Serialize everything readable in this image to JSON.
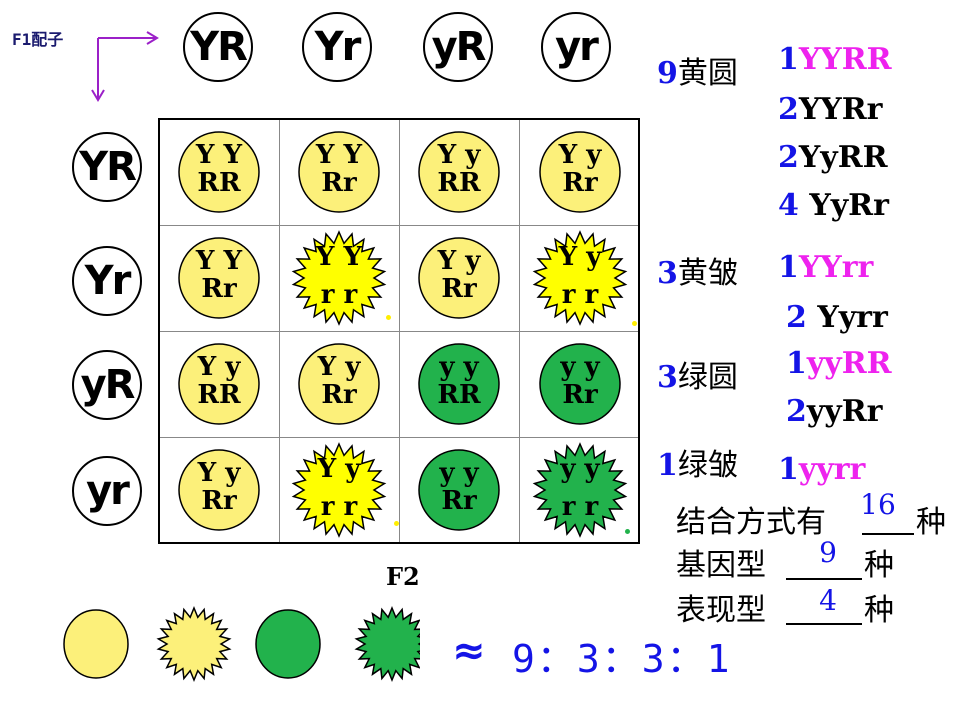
{
  "header": {
    "f1_label": "F1配子"
  },
  "gametes": {
    "top": [
      "YR",
      "Yr",
      "yR",
      "yr"
    ],
    "left": [
      "YR",
      "Yr",
      "yR",
      "yr"
    ]
  },
  "grid": {
    "rows": [
      [
        {
          "g1": "Y Y",
          "g2": "RR",
          "type": "yellow-round"
        },
        {
          "g1": "Y Y",
          "g2": "Rr",
          "type": "yellow-round"
        },
        {
          "g1": "Y y",
          "g2": "RR",
          "type": "yellow-round"
        },
        {
          "g1": "Y y",
          "g2": "Rr",
          "type": "yellow-round"
        }
      ],
      [
        {
          "g1": "Y Y",
          "g2": "Rr",
          "type": "yellow-round"
        },
        {
          "g1": "Y Y",
          "g2": "r r",
          "type": "yellow-wrinkled"
        },
        {
          "g1": "Y y",
          "g2": "Rr",
          "type": "yellow-round"
        },
        {
          "g1": "Y y",
          "g2": "r r",
          "type": "yellow-wrinkled"
        }
      ],
      [
        {
          "g1": "Y y",
          "g2": "RR",
          "type": "yellow-round"
        },
        {
          "g1": "Y y",
          "g2": "Rr",
          "type": "yellow-round"
        },
        {
          "g1": "y y",
          "g2": "RR",
          "type": "green-round"
        },
        {
          "g1": "y y",
          "g2": "Rr",
          "type": "green-round"
        }
      ],
      [
        {
          "g1": "Y y",
          "g2": "Rr",
          "type": "yellow-round"
        },
        {
          "g1": "Y y",
          "g2": "r r",
          "type": "yellow-wrinkled"
        },
        {
          "g1": "y y",
          "g2": "Rr",
          "type": "green-round"
        },
        {
          "g1": "y y",
          "g2": "r r",
          "type": "green-wrinkled"
        }
      ]
    ]
  },
  "f2_label": "F2",
  "phenotypes": [
    {
      "count": "9",
      "name": "黄圆",
      "genotypes": [
        {
          "n": "1",
          "g": "YYRR",
          "hl": true
        },
        {
          "n": "2",
          "g": "YYRr",
          "hl": false
        },
        {
          "n": "2",
          "g": "YyRR",
          "hl": false
        },
        {
          "n": "4 ",
          "g": "YyRr",
          "hl": false
        }
      ]
    },
    {
      "count": "3",
      "name": "黄皱",
      "genotypes": [
        {
          "n": "1",
          "g": "YYrr",
          "hl": true
        },
        {
          "n": "2 ",
          "g": "Yyrr",
          "hl": false
        }
      ]
    },
    {
      "count": "3",
      "name": "绿圆",
      "genotypes": [
        {
          "n": "1",
          "g": "yyRR",
          "hl": true
        },
        {
          "n": "2",
          "g": "yyRr",
          "hl": false
        }
      ]
    },
    {
      "count": "1",
      "name": "绿皱",
      "genotypes": [
        {
          "n": "1",
          "g": "yyrr",
          "hl": true
        }
      ]
    }
  ],
  "summary": {
    "line1": {
      "pre": "结合方式有",
      "val": "16",
      "post": "种"
    },
    "line2": {
      "pre": "基因型",
      "val": "9",
      "post": "种"
    },
    "line3": {
      "pre": "表现型",
      "val": "4",
      "post": "种"
    }
  },
  "ratio": {
    "approx": "≈",
    "text": "9：3：3：1"
  },
  "colors": {
    "yellow": "#fcf07a",
    "bright_yellow": "#ffff00",
    "green": "#22b24c",
    "blue": "#1414e6",
    "magenta": "#ee22ee",
    "arrow": "#9b20c8"
  }
}
